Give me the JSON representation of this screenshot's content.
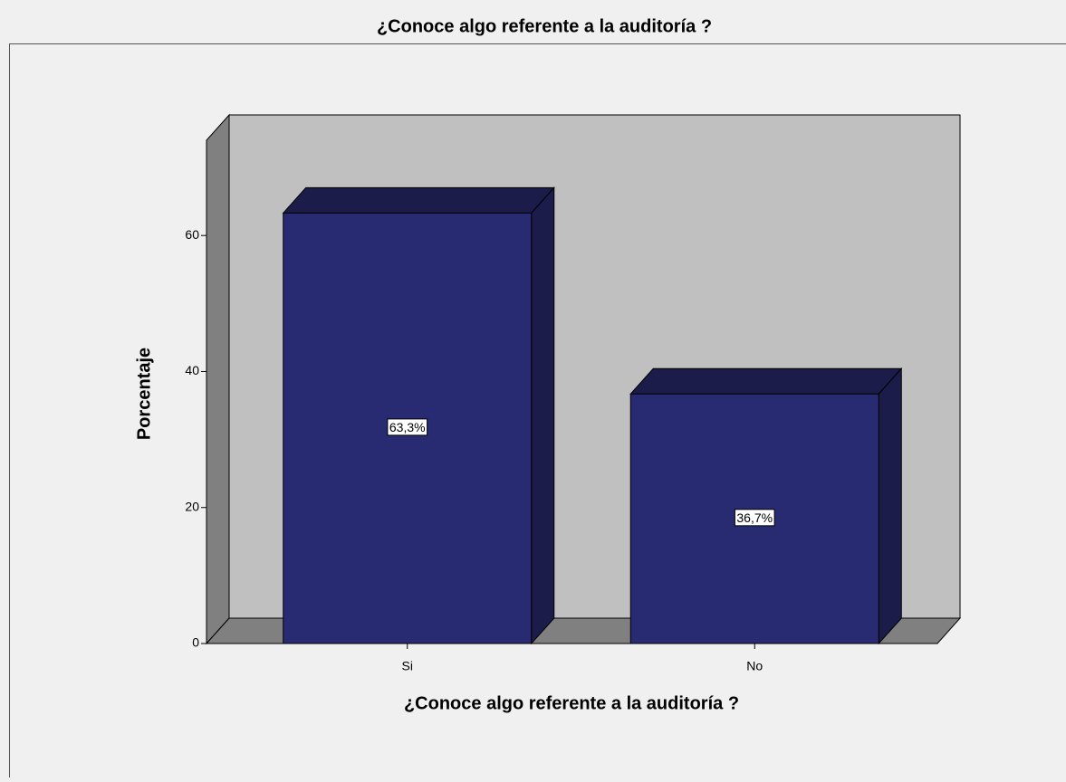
{
  "chart_data": {
    "type": "bar3d",
    "title": "¿Conoce algo referente a la auditoría ?",
    "x_label": "¿Conoce algo referente a la auditoría ?",
    "y_label": "Porcentaje",
    "categories": [
      "Si",
      "No"
    ],
    "values": [
      63.3,
      36.7
    ],
    "value_labels": [
      "63,3%",
      "36,7%"
    ],
    "color": "#282a72",
    "ylim": [
      0,
      74
    ],
    "yticks": [
      0,
      20,
      40,
      60
    ]
  }
}
